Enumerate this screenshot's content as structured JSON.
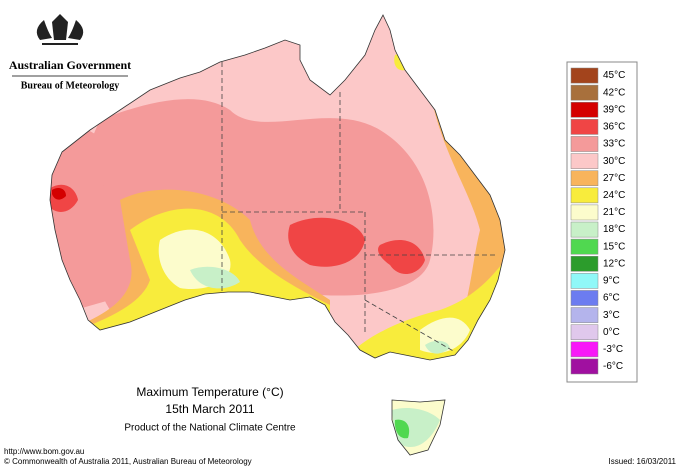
{
  "header": {
    "government": "Australian Government",
    "bureau": "Bureau of Meteorology"
  },
  "legend": {
    "items": [
      {
        "label": "45°C",
        "color": "#a3441c"
      },
      {
        "label": "42°C",
        "color": "#a8703c"
      },
      {
        "label": "39°C",
        "color": "#d40000"
      },
      {
        "label": "36°C",
        "color": "#f04545"
      },
      {
        "label": "33°C",
        "color": "#f49a9a"
      },
      {
        "label": "30°C",
        "color": "#fcc8c8"
      },
      {
        "label": "27°C",
        "color": "#f8b45c"
      },
      {
        "label": "24°C",
        "color": "#f8ec3c"
      },
      {
        "label": "21°C",
        "color": "#fcfccc"
      },
      {
        "label": "18°C",
        "color": "#c8f0c8"
      },
      {
        "label": "15°C",
        "color": "#50d850"
      },
      {
        "label": "12°C",
        "color": "#2c9c2c"
      },
      {
        "label": "9°C",
        "color": "#90f8f8"
      },
      {
        "label": "6°C",
        "color": "#6c7cf0"
      },
      {
        "label": "3°C",
        "color": "#b4b4ec"
      },
      {
        "label": "0°C",
        "color": "#e0c8ec"
      },
      {
        "label": "-3°C",
        "color": "#f818f8"
      },
      {
        "label": "-6°C",
        "color": "#a010a0"
      }
    ]
  },
  "caption": {
    "title": "Maximum Temperature (°C)",
    "date": "15th March 2011",
    "product": "Product of the National Climate Centre"
  },
  "footer": {
    "url": "http://www.bom.gov.au",
    "copyright": "© Commonwealth of Australia 2011, Australian Bureau of Meteorology",
    "issued": "Issued: 16/03/2011"
  }
}
